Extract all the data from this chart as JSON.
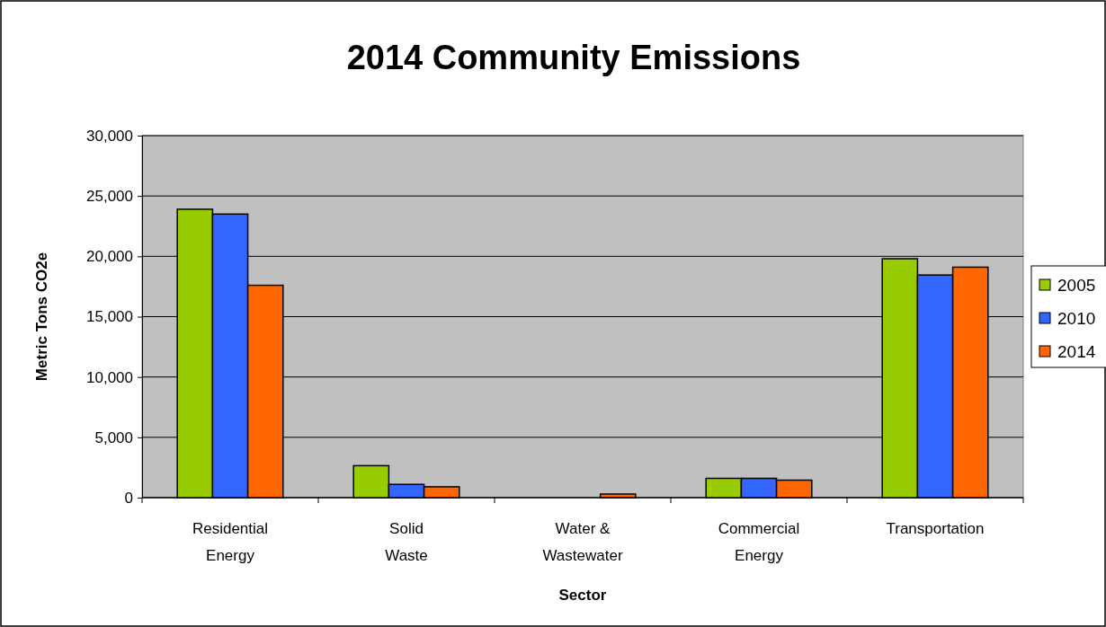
{
  "chart_data": {
    "type": "bar",
    "title": "2014 Community Emissions",
    "xlabel": "Sector",
    "ylabel": "Metric Tons CO2e",
    "categories": [
      "Residential Energy",
      "Solid Waste",
      "Water & Wastewater",
      "Commercial Energy",
      "Transportation"
    ],
    "series": [
      {
        "name": "2005",
        "color": "#99cc00",
        "values": [
          23900,
          2650,
          0,
          1600,
          19800
        ]
      },
      {
        "name": "2010",
        "color": "#3366ff",
        "values": [
          23500,
          1100,
          0,
          1600,
          18450
        ]
      },
      {
        "name": "2014",
        "color": "#ff6600",
        "values": [
          17600,
          900,
          300,
          1450,
          19100
        ]
      }
    ],
    "ylim": [
      0,
      30000
    ],
    "yticks": [
      {
        "value": 0,
        "label": "0"
      },
      {
        "value": 5000,
        "label": "5,000"
      },
      {
        "value": 10000,
        "label": "10,000"
      },
      {
        "value": 15000,
        "label": "15,000"
      },
      {
        "value": 20000,
        "label": "20,000"
      },
      {
        "value": 25000,
        "label": "25,000"
      },
      {
        "value": 30000,
        "label": "30,000"
      }
    ],
    "grid": "y",
    "legend": "right"
  }
}
